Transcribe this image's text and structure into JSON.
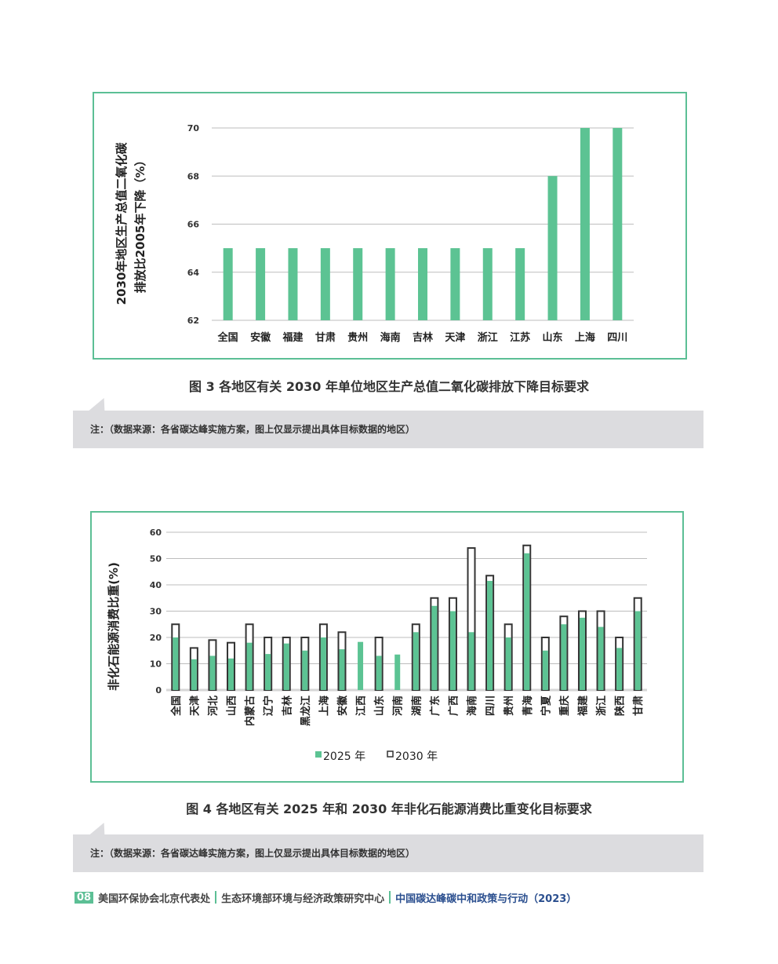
{
  "colors": {
    "accent": "#5cbf95",
    "bar": "#5cc393",
    "outline": "#333333",
    "grid": "#bdbdbd"
  },
  "figure3": {
    "caption": "图 3   各地区有关 2030 年单位地区生产总值二氧化碳排放下降目标要求",
    "note": "注：（数据来源：各省碳达峰实施方案，图上仅显示提出具体目标数据的地区）"
  },
  "figure4": {
    "caption": "图 4   各地区有关 2025 年和 2030 年非化石能源消费比重变化目标要求",
    "note": "注：（数据来源：各省碳达峰实施方案，图上仅显示提出具体目标数据的地区）"
  },
  "footer": {
    "page": "08",
    "org1": "美国环保协会北京代表处",
    "org2": "生态环境部环境与经济政策研究中心",
    "title": "中国碳达峰碳中和政策与行动（2023）"
  },
  "chart_data": [
    {
      "type": "bar",
      "ylabel_line1": "2030年地区生产总值二氧化碳",
      "ylabel_line2": "排放比2005年下降（%）",
      "ylim": [
        62,
        70
      ],
      "yticks": [
        62,
        64,
        66,
        68,
        70
      ],
      "grid": true,
      "categories": [
        "全国",
        "安徽",
        "福建",
        "甘肃",
        "贵州",
        "海南",
        "吉林",
        "天津",
        "浙江",
        "江苏",
        "山东",
        "上海",
        "四川"
      ],
      "values": [
        65,
        65,
        65,
        65,
        65,
        65,
        65,
        65,
        65,
        65,
        68,
        70,
        70
      ]
    },
    {
      "type": "bar",
      "ylabel": "非化石能源消费比重(%)",
      "ylim": [
        0,
        60
      ],
      "yticks": [
        0,
        10,
        20,
        30,
        40,
        50,
        60
      ],
      "grid": true,
      "legend": "bottom",
      "categories": [
        "全国",
        "天津",
        "河北",
        "山西",
        "内蒙古",
        "辽宁",
        "吉林",
        "黑龙江",
        "上海",
        "安徽",
        "江西",
        "山东",
        "河南",
        "湖南",
        "广东",
        "广西",
        "海南",
        "四川",
        "贵州",
        "青海",
        "宁夏",
        "重庆",
        "福建",
        "浙江",
        "陕西",
        "甘肃"
      ],
      "series": [
        {
          "name": "2025 年",
          "values": [
            20,
            11.7,
            13,
            12,
            18,
            13.7,
            17.7,
            15,
            20,
            15.5,
            18.3,
            13,
            13.5,
            22,
            32,
            30,
            22,
            41.5,
            20,
            52,
            15,
            25,
            27.5,
            24,
            16,
            30
          ]
        },
        {
          "name": "2030 年",
          "values": [
            25,
            16,
            19,
            18,
            25,
            20,
            20,
            20,
            25,
            22,
            null,
            20,
            null,
            25,
            35,
            35,
            54,
            43.5,
            25,
            55,
            20,
            28,
            30,
            30,
            20,
            35
          ]
        }
      ]
    }
  ]
}
